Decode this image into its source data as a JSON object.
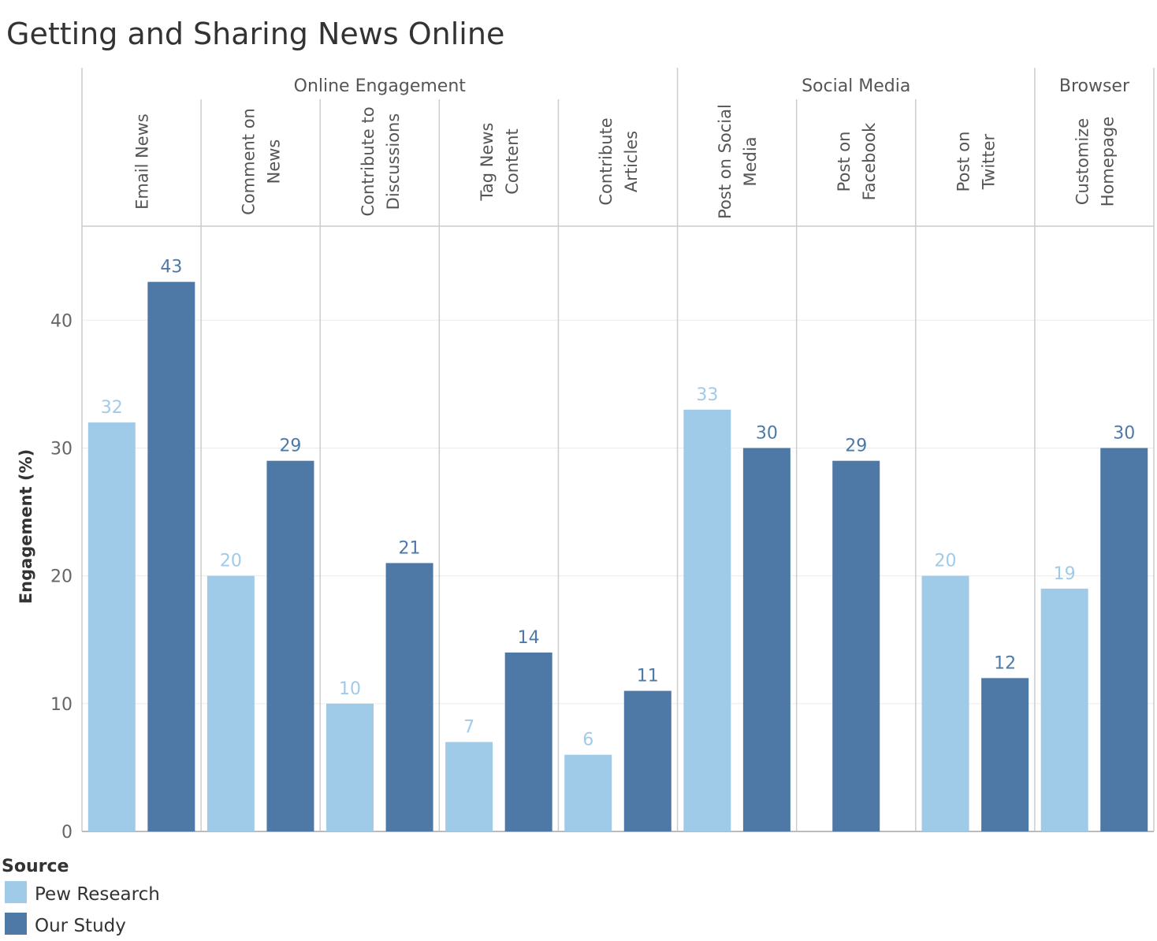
{
  "chart_data": {
    "type": "bar",
    "title": "Getting and Sharing News Online",
    "ylabel": "Engagement (%)",
    "xlabel": "",
    "ylim": [
      0,
      46
    ],
    "yticks": [
      0,
      10,
      20,
      30,
      40
    ],
    "groups": [
      {
        "label": "Online Engagement",
        "categories": [
          {
            "label": [
              "Email News"
            ],
            "values": [
              32,
              43
            ]
          },
          {
            "label": [
              "Comment on",
              "News"
            ],
            "values": [
              20,
              29
            ]
          },
          {
            "label": [
              "Contribute to",
              "Discussions"
            ],
            "values": [
              10,
              21
            ]
          },
          {
            "label": [
              "Tag News",
              "Content"
            ],
            "values": [
              7,
              14
            ]
          },
          {
            "label": [
              "Contribute",
              "Articles"
            ],
            "values": [
              6,
              11
            ]
          }
        ]
      },
      {
        "label": "Social Media",
        "categories": [
          {
            "label": [
              "Post on Social",
              "Media"
            ],
            "values": [
              33,
              30
            ]
          },
          {
            "label": [
              "Post on",
              "Facebook"
            ],
            "values": [
              null,
              29
            ]
          },
          {
            "label": [
              "Post on",
              "Twitter"
            ],
            "values": [
              20,
              12
            ]
          }
        ]
      },
      {
        "label": "Browser",
        "categories": [
          {
            "label": [
              "Customize",
              "Homepage"
            ],
            "values": [
              19,
              30
            ]
          }
        ]
      }
    ],
    "series": [
      {
        "name": "Pew Research",
        "color": "#a0cbe8",
        "label_color": "#a0cbe8"
      },
      {
        "name": "Our Study",
        "color": "#4e79a7",
        "label_color": "#4e79a7"
      }
    ],
    "legend": {
      "title": "Source",
      "position": "bottom-left"
    },
    "grid": true
  }
}
